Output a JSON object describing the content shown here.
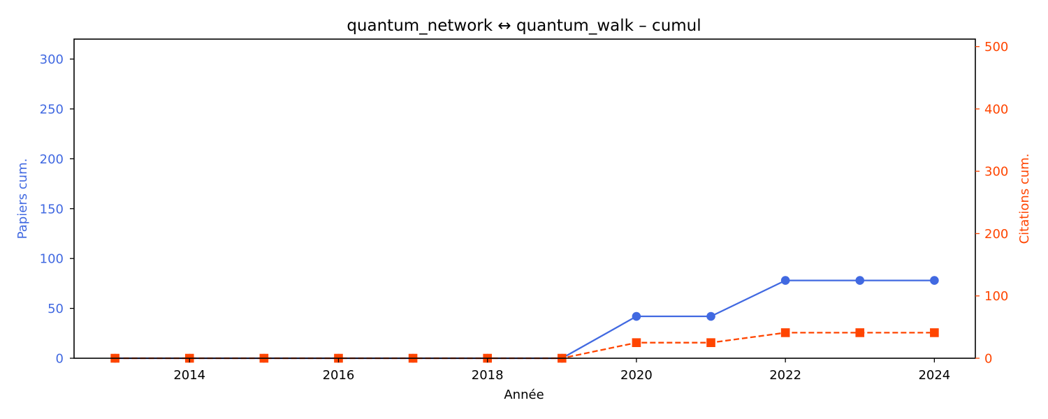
{
  "chart_data": {
    "type": "line",
    "title": "quantum_network  ↔  quantum_walk  –  cumul",
    "xlabel": "Année",
    "ylabel_left": "Papiers cum.",
    "ylabel_right": "Citations cum.",
    "x": [
      2013,
      2014,
      2015,
      2016,
      2017,
      2018,
      2019,
      2020,
      2021,
      2022,
      2023,
      2024
    ],
    "xlim": [
      2012.45,
      2024.55
    ],
    "xticks": [
      2014,
      2016,
      2018,
      2020,
      2022,
      2024
    ],
    "ylim_left": [
      0,
      320
    ],
    "yticks_left": [
      0,
      50,
      100,
      150,
      200,
      250,
      300
    ],
    "ylim_right": [
      0,
      512
    ],
    "yticks_right": [
      0,
      100,
      200,
      300,
      400,
      500
    ],
    "grid": false,
    "series": [
      {
        "axis": "left",
        "color": "#4169E1",
        "marker": "circle",
        "linestyle": "solid",
        "values": [
          0,
          0,
          0,
          0,
          0,
          0,
          0,
          42,
          42,
          78,
          78,
          78
        ]
      },
      {
        "axis": "right",
        "color": "#FF4500",
        "marker": "square",
        "linestyle": "dashed",
        "values": [
          0,
          0,
          0,
          0,
          0,
          0,
          0,
          25,
          25,
          41,
          41,
          41
        ]
      }
    ]
  }
}
